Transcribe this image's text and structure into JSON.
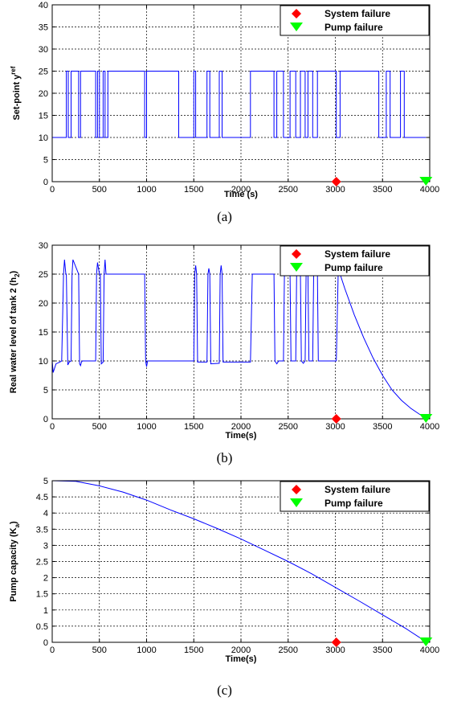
{
  "chart_data": [
    {
      "type": "line",
      "panel_label": "(a)",
      "xlabel": "Time (s)",
      "ylabel": "Set-point y",
      "ylabel_sup": "ref",
      "xlim": [
        0,
        4000
      ],
      "ylim": [
        0,
        40
      ],
      "xticks": [
        0,
        500,
        1000,
        1500,
        2000,
        2500,
        3000,
        3500,
        4000
      ],
      "yticks": [
        0,
        5,
        10,
        15,
        20,
        25,
        30,
        35,
        40
      ],
      "grid": true,
      "legend_position": "top-right",
      "series": [
        {
          "style": "line",
          "x": [
            0,
            150,
            150,
            170,
            170,
            200,
            200,
            280,
            280,
            300,
            300,
            460,
            460,
            480,
            480,
            500,
            500,
            540,
            540,
            560,
            560,
            590,
            590,
            980,
            980,
            1000,
            1000,
            1340,
            1340,
            1500,
            1500,
            1520,
            1520,
            1640,
            1640,
            1670,
            1670,
            1770,
            1770,
            1800,
            1800,
            2100,
            2100,
            2350,
            2350,
            2380,
            2380,
            2450,
            2450,
            2520,
            2520,
            2580,
            2580,
            2630,
            2630,
            2680,
            2680,
            2710,
            2710,
            2760,
            2760,
            2810,
            2810,
            3010,
            3010,
            3050,
            3050,
            3460,
            3460,
            3540,
            3540,
            3580,
            3580,
            3690,
            3690,
            3730,
            3730,
            3960
          ],
          "y": [
            10,
            10,
            25,
            25,
            10,
            10,
            25,
            25,
            10,
            10,
            25,
            25,
            10,
            10,
            25,
            25,
            10,
            10,
            25,
            25,
            10,
            10,
            25,
            25,
            10,
            10,
            25,
            25,
            10,
            10,
            25,
            25,
            10,
            10,
            25,
            25,
            10,
            10,
            25,
            25,
            10,
            10,
            25,
            25,
            10,
            10,
            25,
            25,
            10,
            10,
            25,
            25,
            10,
            10,
            25,
            25,
            10,
            10,
            25,
            25,
            10,
            10,
            25,
            25,
            10,
            10,
            25,
            25,
            10,
            10,
            25,
            25,
            10,
            10,
            25,
            25,
            10,
            10
          ]
        }
      ],
      "markers": [
        {
          "name": "System failure",
          "x": 3010,
          "y": 0,
          "marker": "diamond",
          "color": "#ff0000"
        },
        {
          "name": "Pump failure",
          "x": 3960,
          "y": 0,
          "marker": "triangle-down",
          "color": "#00ff00"
        }
      ]
    },
    {
      "type": "line",
      "panel_label": "(b)",
      "xlabel": "Time(s)",
      "ylabel": "Real water level of tank 2 (h",
      "ylabel_sub": "2",
      "ylabel_end": ")",
      "xlim": [
        0,
        4000
      ],
      "ylim": [
        0,
        30
      ],
      "xticks": [
        0,
        500,
        1000,
        1500,
        2000,
        2500,
        3000,
        3500,
        4000
      ],
      "yticks": [
        0,
        5,
        10,
        15,
        20,
        25,
        30
      ],
      "grid": true,
      "legend_position": "top-right",
      "series": [
        {
          "style": "line",
          "x": [
            0,
            10,
            40,
            80,
            100,
            120,
            130,
            145,
            150,
            165,
            180,
            200,
            210,
            220,
            280,
            290,
            300,
            310,
            320,
            460,
            470,
            480,
            500,
            510,
            520,
            540,
            550,
            560,
            570,
            590,
            600,
            610,
            620,
            980,
            990,
            1000,
            1010,
            1020,
            1340,
            1350,
            1370,
            1500,
            1510,
            1520,
            1530,
            1540,
            1640,
            1650,
            1660,
            1670,
            1680,
            1770,
            1780,
            1790,
            1800,
            1810,
            2100,
            2120,
            2150,
            2350,
            2360,
            2380,
            2400,
            2450,
            2460,
            2480,
            2520,
            2530,
            2550,
            2580,
            2590,
            2600,
            2630,
            2640,
            2660,
            2680,
            2690,
            2700,
            2710,
            2720,
            2760,
            2770,
            2790,
            2810,
            2820,
            2840,
            2860,
            3010,
            3030,
            3050,
            3100,
            3200,
            3300,
            3400,
            3500,
            3600,
            3700,
            3800,
            3900,
            3960
          ],
          "y": [
            10,
            8,
            9.5,
            9.8,
            10,
            25,
            27.5,
            25,
            25,
            9.3,
            9.8,
            10,
            25,
            27.5,
            25,
            9.5,
            9.2,
            9.8,
            10,
            10,
            25,
            27,
            25,
            25,
            9.5,
            9.8,
            25,
            27.5,
            25,
            25,
            25,
            25,
            25,
            25,
            10,
            9,
            10,
            10,
            10,
            10,
            10,
            10,
            25,
            26.5,
            25,
            9.8,
            9.8,
            25,
            26,
            25,
            9.5,
            9.6,
            25,
            26.5,
            25,
            9.8,
            9.8,
            25,
            25,
            25,
            10,
            9.5,
            10,
            10,
            25,
            25.5,
            25,
            10,
            10,
            10,
            25,
            25,
            25,
            10,
            9.6,
            10,
            25,
            25,
            25,
            10,
            10,
            25,
            25,
            25,
            10,
            10,
            10,
            10,
            25,
            25,
            22.5,
            18,
            14,
            10.5,
            7.5,
            5,
            3.2,
            1.8,
            0.7,
            0.2
          ]
        }
      ],
      "markers": [
        {
          "name": "System failure",
          "x": 3010,
          "y": 0,
          "marker": "diamond",
          "color": "#ff0000"
        },
        {
          "name": "Pump failure",
          "x": 3960,
          "y": 0,
          "marker": "triangle-down",
          "color": "#00ff00"
        }
      ]
    },
    {
      "type": "line",
      "panel_label": "(c)",
      "xlabel": "Time(s)",
      "ylabel": "Pump capacity (K",
      "ylabel_sub": "a",
      "ylabel_end": ")",
      "xlim": [
        0,
        4000
      ],
      "ylim": [
        0,
        5
      ],
      "xticks": [
        0,
        500,
        1000,
        1500,
        2000,
        2500,
        3000,
        3500,
        4000
      ],
      "yticks": [
        0,
        0.5,
        1,
        1.5,
        2,
        2.5,
        3,
        3.5,
        4,
        4.5,
        5
      ],
      "grid": true,
      "legend_position": "top-right",
      "series": [
        {
          "style": "line",
          "x": [
            0,
            250,
            500,
            750,
            1000,
            1250,
            1500,
            1750,
            2000,
            2250,
            2500,
            2750,
            3000,
            3250,
            3500,
            3750,
            3960
          ],
          "y": [
            5.0,
            4.98,
            4.84,
            4.65,
            4.4,
            4.1,
            3.82,
            3.52,
            3.2,
            2.85,
            2.5,
            2.12,
            1.7,
            1.28,
            0.85,
            0.42,
            0.02
          ]
        }
      ],
      "markers": [
        {
          "name": "System failure",
          "x": 3010,
          "y": 0,
          "marker": "diamond",
          "color": "#ff0000"
        },
        {
          "name": "Pump failure",
          "x": 3960,
          "y": 0,
          "marker": "triangle-down",
          "color": "#00ff00"
        }
      ]
    }
  ],
  "colors": {
    "series": "#0000ff",
    "system_failure": "#ff0000",
    "pump_failure": "#00ff00",
    "grid": "#000000"
  }
}
